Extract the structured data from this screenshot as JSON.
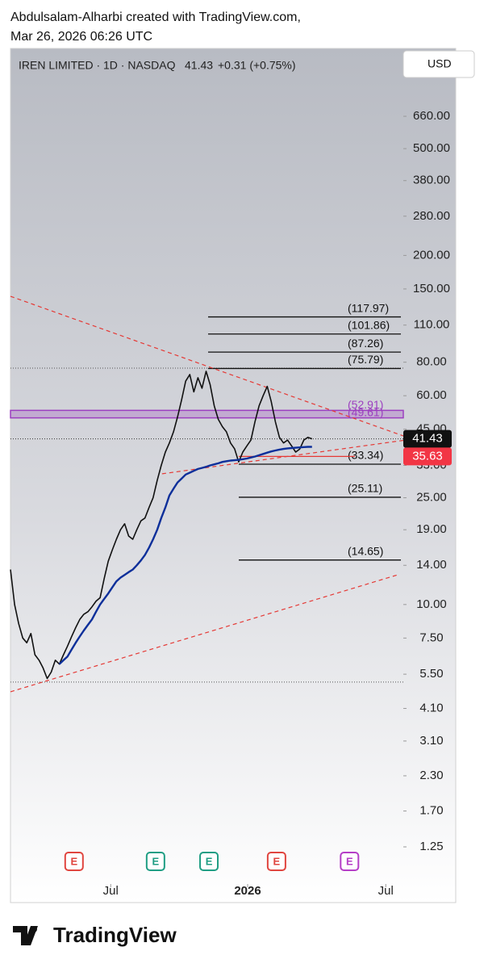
{
  "header": {
    "line1": "Abdulsalam-Alharbi created with TradingView.com,",
    "line2": "Mar 26, 2026 06:26 UTC"
  },
  "footer": {
    "brand": "TradingView"
  },
  "chart_data": {
    "type": "line",
    "title": "IREN LIMITED · 1D · NASDAQ",
    "last": 41.43,
    "change_label": "+0.31 (+0.75%)",
    "currency": "USD",
    "log_scale": true,
    "xlim": [
      0,
      96.4
    ],
    "ylim": [
      0.974,
      927
    ],
    "xticks": [
      {
        "value": 24.6,
        "label": "Jul"
      },
      {
        "value": 58.2,
        "label": "2026"
      },
      {
        "value": 92.1,
        "label": "Jul"
      }
    ],
    "yticks": [
      {
        "value": 660,
        "label": "660.00"
      },
      {
        "value": 500,
        "label": "500.00"
      },
      {
        "value": 380,
        "label": "380.00"
      },
      {
        "value": 280,
        "label": "280.00"
      },
      {
        "value": 200,
        "label": "200.00"
      },
      {
        "value": 150,
        "label": "150.00"
      },
      {
        "value": 110,
        "label": "110.00"
      },
      {
        "value": 80,
        "label": "80.00"
      },
      {
        "value": 60,
        "label": "60.00"
      },
      {
        "value": 45,
        "label": "45.00"
      },
      {
        "value": 33,
        "label": "33.00"
      },
      {
        "value": 25,
        "label": "25.00"
      },
      {
        "value": 19,
        "label": "19.00"
      },
      {
        "value": 14,
        "label": "14.00"
      },
      {
        "value": 10,
        "label": "10.00"
      },
      {
        "value": 7.5,
        "label": "7.50"
      },
      {
        "value": 5.5,
        "label": "5.50"
      },
      {
        "value": 4.1,
        "label": "4.10"
      },
      {
        "value": 3.1,
        "label": "3.10"
      },
      {
        "value": 2.3,
        "label": "2.30"
      },
      {
        "value": 1.7,
        "label": "1.70"
      },
      {
        "value": 1.25,
        "label": "1.25"
      }
    ],
    "series": [
      {
        "name": "IREN",
        "color": "#111111",
        "values": [
          13.5,
          10,
          8.5,
          7.5,
          7.2,
          7.8,
          6.5,
          6.2,
          5.8,
          5.3,
          5.6,
          6.2,
          6.0,
          6.5,
          7.0,
          7.6,
          8.2,
          8.8,
          9.2,
          9.4,
          9.8,
          10.3,
          10.6,
          12.5,
          14.5,
          16,
          17.5,
          19,
          20,
          18,
          17.5,
          19,
          20.5,
          21,
          23,
          25,
          29,
          33,
          37,
          40,
          44,
          50,
          58,
          68,
          72,
          62,
          70,
          64,
          74,
          66,
          55,
          49,
          46,
          44,
          40,
          38,
          34,
          37,
          39,
          41,
          48,
          55,
          60,
          65,
          57,
          48,
          42,
          40,
          41,
          39,
          37,
          38,
          41,
          42,
          41.43
        ]
      },
      {
        "name": "MA",
        "color": "#0d2f9a",
        "values": [
          null,
          null,
          null,
          null,
          null,
          null,
          null,
          null,
          null,
          null,
          null,
          null,
          6.0,
          6.2,
          6.4,
          6.8,
          7.2,
          7.6,
          8.0,
          8.4,
          8.8,
          9.4,
          10.0,
          10.5,
          11.0,
          11.6,
          12.2,
          12.6,
          12.9,
          13.2,
          13.5,
          14.0,
          14.6,
          15.3,
          16.3,
          17.5,
          19,
          21,
          23,
          25.5,
          27,
          28.5,
          29.5,
          30.5,
          31,
          31.5,
          32,
          32.3,
          32.6,
          33,
          33.3,
          33.6,
          34,
          34.2,
          34.4,
          34.5,
          34.6,
          34.8,
          35,
          35.3,
          35.6,
          36,
          36.4,
          36.8,
          37.2,
          37.5,
          37.8,
          38,
          38.2,
          38.3,
          38.4,
          38.5,
          38.6,
          38.7,
          38.7
        ]
      }
    ],
    "fib_levels": [
      {
        "value": 117.97,
        "label": "(117.97)"
      },
      {
        "value": 101.86,
        "label": "(101.86)"
      },
      {
        "value": 87.26,
        "label": "(87.26)"
      },
      {
        "value": 75.79,
        "label": "(75.79)"
      },
      {
        "value": 33.34,
        "label": "(33.34)"
      },
      {
        "value": 25.11,
        "label": "(25.11)"
      },
      {
        "value": 14.65,
        "label": "(14.65)"
      }
    ],
    "band": {
      "low": 49.61,
      "high": 52.91,
      "low_label": "(49.61)",
      "high_label": "(52.91)",
      "color": "#9c3fc0"
    },
    "stop_level": 35.63,
    "reference_lines": [
      76,
      5.14
    ],
    "trendlines": [
      {
        "x": [
          0,
          96.4
        ],
        "y": [
          140.8,
          42.5
        ]
      },
      {
        "x": [
          0,
          95
        ],
        "y": [
          4.73,
          12.9
        ]
      },
      {
        "x": [
          37.2,
          96.4
        ],
        "y": [
          30.7,
          40.9
        ]
      }
    ],
    "events": [
      {
        "value": 15.6,
        "label": "E",
        "color": "#e0453f"
      },
      {
        "value": 35.6,
        "label": "E",
        "color": "#1f9e84"
      },
      {
        "value": 48.7,
        "label": "E",
        "color": "#1f9e84"
      },
      {
        "value": 65.3,
        "label": "E",
        "color": "#e0453f"
      },
      {
        "value": 83.2,
        "label": "E",
        "color": "#b53ec7"
      }
    ]
  }
}
